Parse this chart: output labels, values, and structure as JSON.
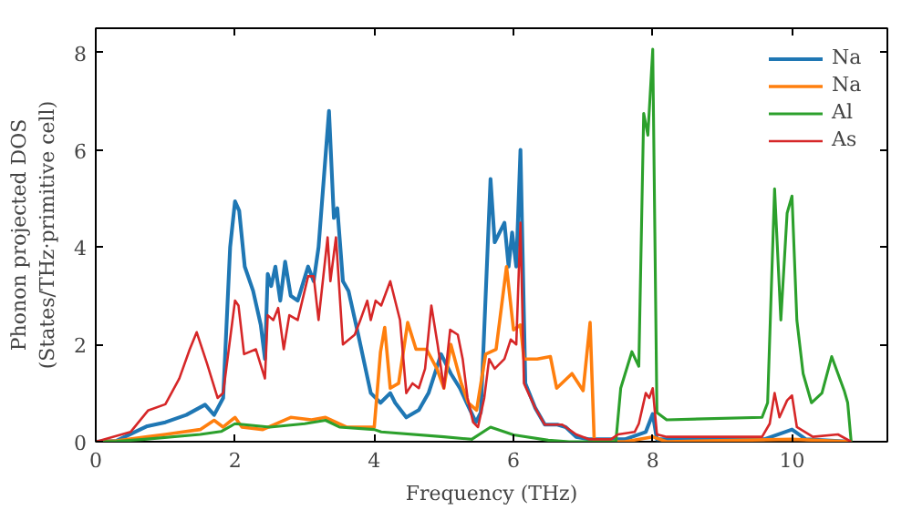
{
  "chart_data": {
    "type": "line",
    "xlabel": "Frequency (THz)",
    "ylabel": "Phonon projected DOS\n(States/THz·primitive cell)",
    "xlim": [
      0,
      11.37
    ],
    "ylim": [
      0,
      8.5
    ],
    "xticks": [
      0,
      2,
      4,
      6,
      8,
      10
    ],
    "yticks": [
      0,
      2,
      4,
      6,
      8
    ],
    "grid": false,
    "legend": "top right",
    "marker": "none",
    "line_style": "solid",
    "series": [
      {
        "name": "Na",
        "color": "#1f77b4",
        "x": [
          0,
          0.3,
          0.74,
          1.0,
          1.3,
          1.57,
          1.7,
          1.83,
          1.93,
          2.0,
          2.06,
          2.14,
          2.26,
          2.37,
          2.43,
          2.47,
          2.52,
          2.58,
          2.65,
          2.72,
          2.8,
          2.9,
          3.05,
          3.13,
          3.2,
          3.35,
          3.42,
          3.47,
          3.55,
          3.63,
          3.77,
          3.95,
          4.09,
          4.23,
          4.3,
          4.46,
          4.64,
          4.78,
          4.96,
          5.1,
          5.23,
          5.36,
          5.46,
          5.53,
          5.67,
          5.73,
          5.87,
          5.93,
          5.98,
          6.04,
          6.1,
          6.17,
          6.31,
          6.45,
          6.63,
          6.75,
          6.9,
          7.08,
          7.6,
          7.9,
          8.0,
          8.06,
          9.6,
          9.9,
          10.0,
          10.2,
          10.85
        ],
        "values": [
          0,
          0.02,
          0.32,
          0.4,
          0.55,
          0.76,
          0.55,
          0.9,
          4.0,
          4.94,
          4.75,
          3.6,
          3.1,
          2.4,
          1.7,
          3.45,
          3.2,
          3.6,
          2.9,
          3.7,
          3.0,
          2.9,
          3.6,
          3.3,
          4.0,
          6.8,
          4.6,
          4.8,
          3.3,
          3.1,
          2.2,
          1.0,
          0.8,
          1.0,
          0.8,
          0.5,
          0.65,
          1.0,
          1.8,
          1.4,
          1.1,
          0.7,
          0.4,
          0.6,
          5.4,
          4.1,
          4.5,
          3.6,
          4.3,
          3.6,
          6.0,
          1.2,
          0.7,
          0.35,
          0.35,
          0.3,
          0.1,
          0.05,
          0.05,
          0.2,
          0.57,
          0.05,
          0.05,
          0.2,
          0.25,
          0.05,
          0
        ]
      },
      {
        "name": "Na",
        "color": "#ff7f0e",
        "x": [
          0,
          0.3,
          0.74,
          1.0,
          1.5,
          1.7,
          1.83,
          2.0,
          2.1,
          2.4,
          2.8,
          3.1,
          3.3,
          3.6,
          3.9,
          4.0,
          4.09,
          4.15,
          4.23,
          4.35,
          4.48,
          4.6,
          4.75,
          4.9,
          5.0,
          5.1,
          5.25,
          5.35,
          5.47,
          5.6,
          5.75,
          5.9,
          6.0,
          6.1,
          6.15,
          6.34,
          6.53,
          6.62,
          6.84,
          7.0,
          7.1,
          7.16,
          7.6,
          8.0,
          8.2,
          10.0,
          10.85
        ],
        "values": [
          0,
          0.02,
          0.1,
          0.15,
          0.25,
          0.44,
          0.3,
          0.5,
          0.3,
          0.25,
          0.5,
          0.45,
          0.5,
          0.3,
          0.3,
          0.3,
          1.85,
          2.35,
          1.1,
          1.2,
          2.45,
          1.9,
          1.9,
          1.5,
          1.1,
          2.0,
          1.2,
          0.8,
          0.65,
          1.8,
          1.9,
          3.6,
          2.3,
          2.4,
          1.7,
          1.7,
          1.75,
          1.1,
          1.4,
          1.05,
          2.45,
          0,
          0,
          0.1,
          0,
          0.05,
          0
        ]
      },
      {
        "name": "Al",
        "color": "#2ca02c",
        "x": [
          0,
          0.3,
          0.7,
          1.5,
          1.8,
          2.0,
          2.5,
          3.0,
          3.3,
          3.5,
          4.0,
          4.1,
          5.0,
          5.4,
          5.67,
          6.0,
          6.5,
          6.8,
          7.47,
          7.54,
          7.7,
          7.8,
          7.87,
          7.93,
          8.0,
          8.06,
          8.2,
          9.57,
          9.65,
          9.75,
          9.84,
          9.93,
          10.0,
          10.07,
          10.16,
          10.28,
          10.43,
          10.57,
          10.75,
          10.8,
          10.85
        ],
        "values": [
          0,
          0.01,
          0.05,
          0.15,
          0.21,
          0.37,
          0.3,
          0.37,
          0.44,
          0.3,
          0.25,
          0.2,
          0.1,
          0.05,
          0.3,
          0.14,
          0.03,
          0,
          0,
          1.1,
          1.85,
          1.55,
          6.75,
          6.3,
          8.07,
          0.6,
          0.45,
          0.5,
          0.8,
          5.2,
          2.5,
          4.7,
          5.05,
          2.5,
          1.4,
          0.8,
          1.0,
          1.75,
          1.05,
          0.8,
          0
        ]
      },
      {
        "name": "As",
        "color": "#d62728",
        "x": [
          0,
          0.5,
          0.75,
          1.0,
          1.2,
          1.35,
          1.45,
          1.6,
          1.75,
          1.83,
          2.0,
          2.05,
          2.13,
          2.3,
          2.43,
          2.47,
          2.55,
          2.62,
          2.7,
          2.78,
          2.9,
          3.05,
          3.13,
          3.2,
          3.33,
          3.37,
          3.45,
          3.55,
          3.72,
          3.8,
          3.9,
          3.95,
          4.02,
          4.1,
          4.23,
          4.37,
          4.46,
          4.55,
          4.64,
          4.73,
          4.82,
          4.91,
          5.0,
          5.09,
          5.2,
          5.27,
          5.34,
          5.42,
          5.49,
          5.58,
          5.65,
          5.73,
          5.87,
          5.96,
          6.04,
          6.1,
          6.15,
          6.31,
          6.45,
          6.7,
          6.9,
          7.08,
          7.4,
          7.5,
          7.74,
          7.8,
          7.9,
          7.95,
          8.0,
          8.06,
          8.2,
          9.57,
          9.68,
          9.75,
          9.82,
          9.93,
          10.0,
          10.07,
          10.3,
          10.66,
          10.85
        ],
        "values": [
          0,
          0.2,
          0.64,
          0.77,
          1.3,
          1.9,
          2.25,
          1.6,
          0.9,
          1.0,
          2.9,
          2.8,
          1.8,
          1.9,
          1.3,
          2.6,
          2.5,
          2.75,
          1.9,
          2.6,
          2.5,
          3.4,
          3.4,
          2.5,
          4.2,
          3.3,
          4.2,
          2.0,
          2.2,
          2.5,
          2.9,
          2.5,
          2.9,
          2.8,
          3.3,
          2.5,
          1.0,
          1.2,
          1.1,
          1.5,
          2.8,
          2.0,
          1.1,
          2.3,
          2.2,
          1.7,
          0.9,
          0.4,
          0.3,
          0.9,
          1.7,
          1.5,
          1.7,
          2.1,
          2.0,
          4.5,
          1.2,
          0.7,
          0.35,
          0.35,
          0.15,
          0.05,
          0.05,
          0.15,
          0.2,
          0.37,
          1.0,
          0.9,
          1.1,
          0.15,
          0.1,
          0.1,
          0.37,
          1.0,
          0.5,
          0.85,
          0.95,
          0.3,
          0.1,
          0.15,
          0
        ]
      }
    ]
  }
}
